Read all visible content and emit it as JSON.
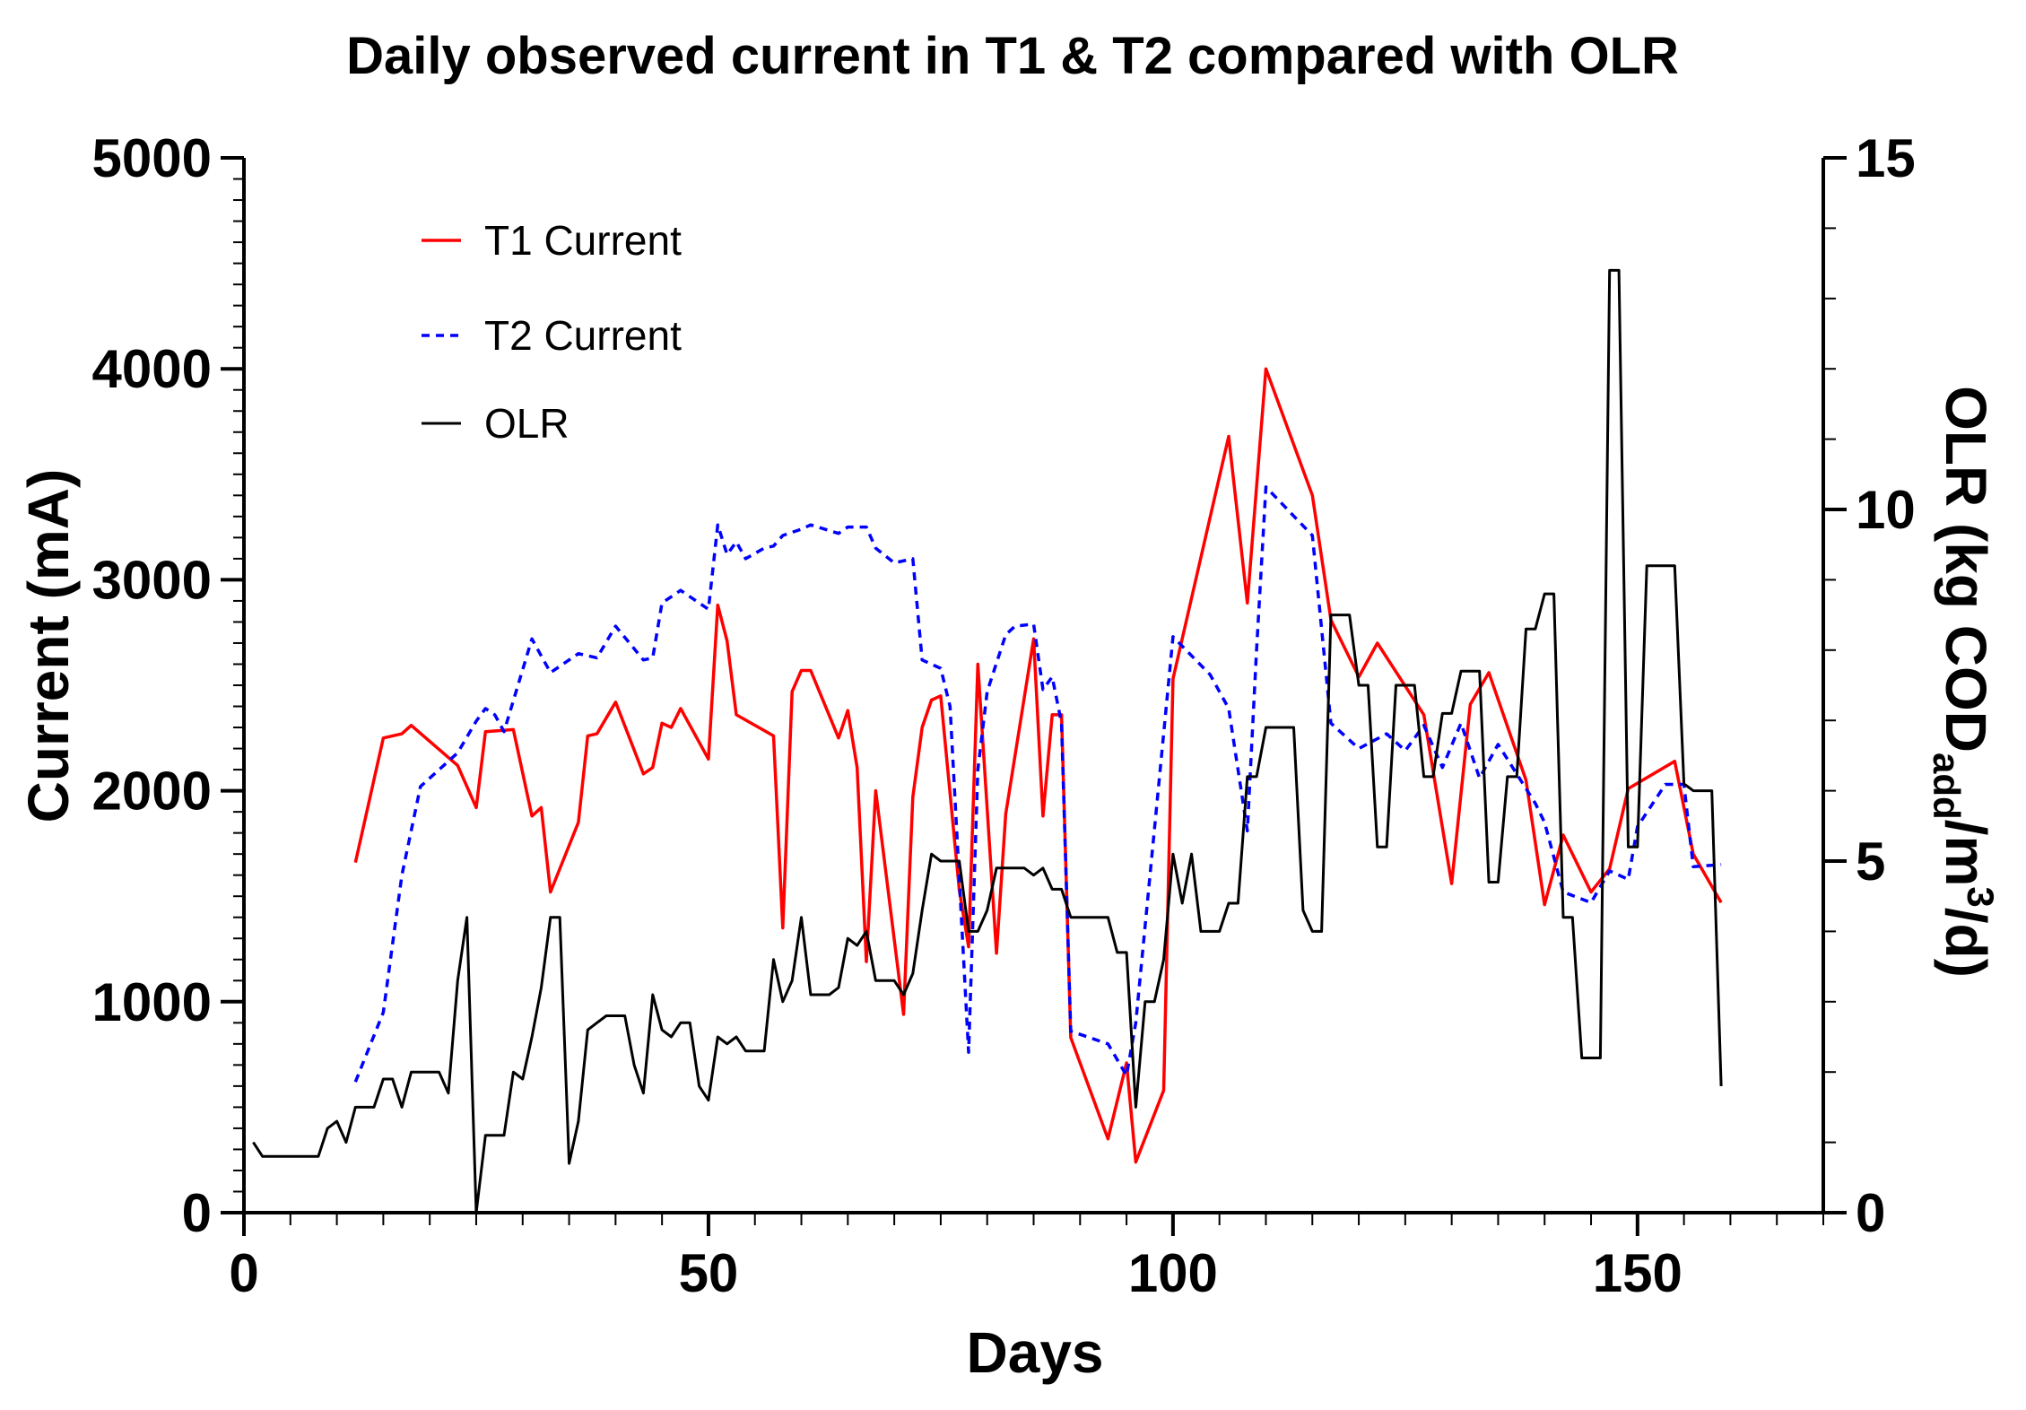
{
  "chart_data": {
    "type": "line",
    "title": "Daily observed current in T1 & T2 compared with OLR",
    "xlabel": "Days",
    "ylabel": "Current (mA)",
    "y2label_parts": [
      "OLR (kg COD",
      "add",
      "/m",
      "3",
      "/d)"
    ],
    "xlim": [
      0,
      170
    ],
    "ylim": [
      0,
      5000
    ],
    "y2lim": [
      0,
      15
    ],
    "x_ticks": [
      "0",
      "50",
      "100",
      "150"
    ],
    "y_ticks": [
      "0",
      "1000",
      "2000",
      "3000",
      "4000",
      "5000"
    ],
    "y2_ticks": [
      "0",
      "5",
      "10",
      "15"
    ],
    "legend": [
      "T1 Current",
      "T2 Current",
      "OLR"
    ],
    "colors": {
      "t1": "#ff0000",
      "t2": "#0000ff",
      "olr": "#000000"
    },
    "series": [
      {
        "name": "T1 Current",
        "axis": "left",
        "style": "solid",
        "points": [
          [
            12,
            1660
          ],
          [
            15,
            2250
          ],
          [
            17,
            2270
          ],
          [
            18,
            2310
          ],
          [
            23,
            2120
          ],
          [
            25,
            1920
          ],
          [
            26,
            2280
          ],
          [
            29,
            2290
          ],
          [
            31,
            1880
          ],
          [
            32,
            1920
          ],
          [
            33,
            1520
          ],
          [
            36,
            1850
          ],
          [
            37,
            2260
          ],
          [
            38,
            2270
          ],
          [
            40,
            2420
          ],
          [
            43,
            2080
          ],
          [
            44,
            2110
          ],
          [
            45,
            2320
          ],
          [
            46,
            2300
          ],
          [
            47,
            2390
          ],
          [
            50,
            2150
          ],
          [
            51,
            2880
          ],
          [
            52,
            2710
          ],
          [
            53,
            2360
          ],
          [
            57,
            2260
          ],
          [
            58,
            1350
          ],
          [
            59,
            2470
          ],
          [
            60,
            2570
          ],
          [
            61,
            2570
          ],
          [
            64,
            2250
          ],
          [
            65,
            2380
          ],
          [
            66,
            2110
          ],
          [
            67,
            1190
          ],
          [
            68,
            2000
          ],
          [
            71,
            940
          ],
          [
            72,
            1970
          ],
          [
            73,
            2300
          ],
          [
            74,
            2430
          ],
          [
            75,
            2450
          ],
          [
            77,
            1530
          ],
          [
            78,
            1260
          ],
          [
            79,
            2600
          ],
          [
            81,
            1230
          ],
          [
            82,
            1890
          ],
          [
            85,
            2720
          ],
          [
            86,
            1880
          ],
          [
            87,
            2360
          ],
          [
            88,
            2360
          ],
          [
            89,
            830
          ],
          [
            93,
            350
          ],
          [
            95,
            710
          ],
          [
            96,
            240
          ],
          [
            99,
            580
          ],
          [
            100,
            2530
          ],
          [
            106,
            3680
          ],
          [
            108,
            2890
          ],
          [
            110,
            4000
          ],
          [
            115,
            3400
          ],
          [
            117,
            2810
          ],
          [
            120,
            2540
          ],
          [
            122,
            2700
          ],
          [
            127,
            2360
          ],
          [
            130,
            1560
          ],
          [
            132,
            2410
          ],
          [
            134,
            2560
          ],
          [
            138,
            2050
          ],
          [
            140,
            1460
          ],
          [
            142,
            1790
          ],
          [
            145,
            1520
          ],
          [
            147,
            1630
          ],
          [
            149,
            2010
          ],
          [
            154,
            2140
          ],
          [
            156,
            1700
          ],
          [
            159,
            1470
          ]
        ]
      },
      {
        "name": "T2 Current",
        "axis": "left",
        "style": "dashed",
        "points": [
          [
            12,
            620
          ],
          [
            15,
            950
          ],
          [
            17,
            1600
          ],
          [
            19,
            2020
          ],
          [
            23,
            2180
          ],
          [
            25,
            2330
          ],
          [
            26,
            2390
          ],
          [
            27,
            2360
          ],
          [
            28,
            2280
          ],
          [
            31,
            2720
          ],
          [
            33,
            2560
          ],
          [
            36,
            2650
          ],
          [
            38,
            2630
          ],
          [
            40,
            2780
          ],
          [
            43,
            2620
          ],
          [
            44,
            2630
          ],
          [
            45,
            2890
          ],
          [
            47,
            2950
          ],
          [
            50,
            2860
          ],
          [
            51,
            3260
          ],
          [
            52,
            3120
          ],
          [
            53,
            3180
          ],
          [
            54,
            3100
          ],
          [
            56,
            3150
          ],
          [
            57,
            3160
          ],
          [
            58,
            3210
          ],
          [
            60,
            3240
          ],
          [
            61,
            3260
          ],
          [
            64,
            3220
          ],
          [
            65,
            3250
          ],
          [
            67,
            3250
          ],
          [
            68,
            3150
          ],
          [
            70,
            3080
          ],
          [
            72,
            3100
          ],
          [
            73,
            2620
          ],
          [
            75,
            2580
          ],
          [
            76,
            2400
          ],
          [
            78,
            760
          ],
          [
            79,
            2100
          ],
          [
            80,
            2470
          ],
          [
            82,
            2740
          ],
          [
            83,
            2780
          ],
          [
            85,
            2790
          ],
          [
            86,
            2480
          ],
          [
            87,
            2540
          ],
          [
            88,
            2320
          ],
          [
            89,
            860
          ],
          [
            93,
            800
          ],
          [
            95,
            650
          ],
          [
            96,
            900
          ],
          [
            100,
            2730
          ],
          [
            104,
            2550
          ],
          [
            106,
            2390
          ],
          [
            108,
            1810
          ],
          [
            109,
            2670
          ],
          [
            110,
            3440
          ],
          [
            115,
            3210
          ],
          [
            117,
            2320
          ],
          [
            120,
            2200
          ],
          [
            123,
            2270
          ],
          [
            125,
            2190
          ],
          [
            127,
            2310
          ],
          [
            129,
            2110
          ],
          [
            131,
            2320
          ],
          [
            133,
            2060
          ],
          [
            135,
            2220
          ],
          [
            139,
            1940
          ],
          [
            140,
            1850
          ],
          [
            142,
            1520
          ],
          [
            145,
            1470
          ],
          [
            147,
            1620
          ],
          [
            149,
            1580
          ],
          [
            150,
            1830
          ],
          [
            153,
            2030
          ],
          [
            155,
            2030
          ],
          [
            156,
            1640
          ],
          [
            159,
            1650
          ]
        ]
      },
      {
        "name": "OLR",
        "axis": "right",
        "style": "solid",
        "points": [
          [
            1,
            1.0
          ],
          [
            2,
            0.8
          ],
          [
            3,
            0.8
          ],
          [
            4,
            0.8
          ],
          [
            5,
            0.8
          ],
          [
            6,
            0.8
          ],
          [
            7,
            0.8
          ],
          [
            8,
            0.8
          ],
          [
            9,
            1.2
          ],
          [
            10,
            1.3
          ],
          [
            11,
            1.0
          ],
          [
            12,
            1.5
          ],
          [
            13,
            1.5
          ],
          [
            14,
            1.5
          ],
          [
            15,
            1.9
          ],
          [
            16,
            1.9
          ],
          [
            17,
            1.5
          ],
          [
            18,
            2.0
          ],
          [
            19,
            2.0
          ],
          [
            20,
            2.0
          ],
          [
            21,
            2.0
          ],
          [
            22,
            1.7
          ],
          [
            23,
            3.3
          ],
          [
            24,
            4.2
          ],
          [
            25,
            0.0
          ],
          [
            26,
            1.1
          ],
          [
            27,
            1.1
          ],
          [
            28,
            1.1
          ],
          [
            29,
            2.0
          ],
          [
            30,
            1.9
          ],
          [
            31,
            2.5
          ],
          [
            32,
            3.2
          ],
          [
            33,
            4.2
          ],
          [
            34,
            4.2
          ],
          [
            35,
            0.7
          ],
          [
            36,
            1.3
          ],
          [
            37,
            2.6
          ],
          [
            38,
            2.7
          ],
          [
            39,
            2.8
          ],
          [
            40,
            2.8
          ],
          [
            41,
            2.8
          ],
          [
            42,
            2.1
          ],
          [
            43,
            1.7
          ],
          [
            44,
            3.1
          ],
          [
            45,
            2.6
          ],
          [
            46,
            2.5
          ],
          [
            47,
            2.7
          ],
          [
            48,
            2.7
          ],
          [
            49,
            1.8
          ],
          [
            50,
            1.6
          ],
          [
            51,
            2.5
          ],
          [
            52,
            2.4
          ],
          [
            53,
            2.5
          ],
          [
            54,
            2.3
          ],
          [
            55,
            2.3
          ],
          [
            56,
            2.3
          ],
          [
            57,
            3.6
          ],
          [
            58,
            3.0
          ],
          [
            59,
            3.3
          ],
          [
            60,
            4.2
          ],
          [
            61,
            3.1
          ],
          [
            62,
            3.1
          ],
          [
            63,
            3.1
          ],
          [
            64,
            3.2
          ],
          [
            65,
            3.9
          ],
          [
            66,
            3.8
          ],
          [
            67,
            4.0
          ],
          [
            68,
            3.3
          ],
          [
            69,
            3.3
          ],
          [
            70,
            3.3
          ],
          [
            71,
            3.1
          ],
          [
            72,
            3.4
          ],
          [
            73,
            4.3
          ],
          [
            74,
            5.1
          ],
          [
            75,
            5.0
          ],
          [
            76,
            5.0
          ],
          [
            77,
            5.0
          ],
          [
            78,
            4.0
          ],
          [
            79,
            4.0
          ],
          [
            80,
            4.3
          ],
          [
            81,
            4.9
          ],
          [
            82,
            4.9
          ],
          [
            83,
            4.9
          ],
          [
            84,
            4.9
          ],
          [
            85,
            4.8
          ],
          [
            86,
            4.9
          ],
          [
            87,
            4.6
          ],
          [
            88,
            4.6
          ],
          [
            89,
            4.2
          ],
          [
            90,
            4.2
          ],
          [
            91,
            4.2
          ],
          [
            92,
            4.2
          ],
          [
            93,
            4.2
          ],
          [
            94,
            3.7
          ],
          [
            95,
            3.7
          ],
          [
            96,
            1.5
          ],
          [
            97,
            3.0
          ],
          [
            98,
            3.0
          ],
          [
            99,
            3.6
          ],
          [
            100,
            5.1
          ],
          [
            101,
            4.4
          ],
          [
            102,
            5.1
          ],
          [
            103,
            4.0
          ],
          [
            104,
            4.0
          ],
          [
            105,
            4.0
          ],
          [
            106,
            4.4
          ],
          [
            107,
            4.4
          ],
          [
            108,
            6.2
          ],
          [
            109,
            6.2
          ],
          [
            110,
            6.9
          ],
          [
            111,
            6.9
          ],
          [
            112,
            6.9
          ],
          [
            113,
            6.9
          ],
          [
            114,
            4.3
          ],
          [
            115,
            4.0
          ],
          [
            116,
            4.0
          ],
          [
            117,
            8.5
          ],
          [
            118,
            8.5
          ],
          [
            119,
            8.5
          ],
          [
            120,
            7.5
          ],
          [
            121,
            7.5
          ],
          [
            122,
            5.2
          ],
          [
            123,
            5.2
          ],
          [
            124,
            7.5
          ],
          [
            125,
            7.5
          ],
          [
            126,
            7.5
          ],
          [
            127,
            6.2
          ],
          [
            128,
            6.2
          ],
          [
            129,
            7.1
          ],
          [
            130,
            7.1
          ],
          [
            131,
            7.7
          ],
          [
            132,
            7.7
          ],
          [
            133,
            7.7
          ],
          [
            134,
            4.7
          ],
          [
            135,
            4.7
          ],
          [
            136,
            6.2
          ],
          [
            137,
            6.2
          ],
          [
            138,
            8.3
          ],
          [
            139,
            8.3
          ],
          [
            140,
            8.8
          ],
          [
            141,
            8.8
          ],
          [
            142,
            4.2
          ],
          [
            143,
            4.2
          ],
          [
            144,
            2.2
          ],
          [
            145,
            2.2
          ],
          [
            146,
            2.2
          ],
          [
            147,
            13.4
          ],
          [
            148,
            13.4
          ],
          [
            149,
            5.2
          ],
          [
            150,
            5.2
          ],
          [
            151,
            9.2
          ],
          [
            152,
            9.2
          ],
          [
            153,
            9.2
          ],
          [
            154,
            9.2
          ],
          [
            155,
            6.1
          ],
          [
            156,
            6.0
          ],
          [
            157,
            6.0
          ],
          [
            158,
            6.0
          ],
          [
            159,
            1.8
          ]
        ]
      }
    ]
  }
}
